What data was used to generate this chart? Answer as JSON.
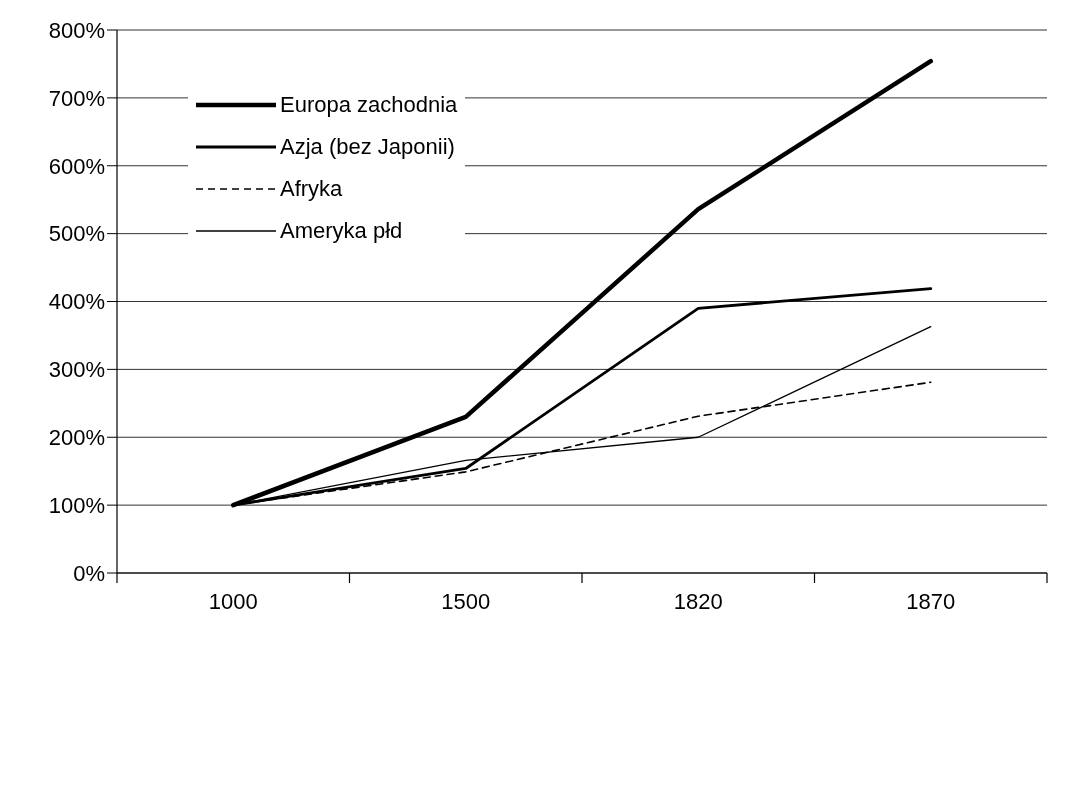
{
  "chart_data": {
    "type": "line",
    "categories": [
      "1000",
      "1500",
      "1820",
      "1870"
    ],
    "series": [
      {
        "name": "Europa zachodnia",
        "color": "#000000",
        "values": [
          100,
          230,
          536,
          754
        ]
      },
      {
        "name": "Azja (bez Japonii)",
        "color": "#000000",
        "values": [
          100,
          154,
          390,
          419
        ]
      },
      {
        "name": "Afryka",
        "color": "#000000",
        "line_style": "dashed",
        "values": [
          100,
          149,
          231,
          281
        ]
      },
      {
        "name": "Ameryka płd",
        "color": "#000000",
        "values": [
          100,
          166,
          200,
          363
        ]
      }
    ],
    "ylim": [
      0,
      800
    ],
    "yticks": [
      {
        "value": 0,
        "label": "0%"
      },
      {
        "value": 100,
        "label": "100%"
      },
      {
        "value": 200,
        "label": "200%"
      },
      {
        "value": 300,
        "label": "300%"
      },
      {
        "value": 400,
        "label": "400%"
      },
      {
        "value": 500,
        "label": "500%"
      },
      {
        "value": 600,
        "label": "600%"
      },
      {
        "value": 700,
        "label": "700%"
      },
      {
        "value": 800,
        "label": "800%"
      }
    ],
    "grid": "y",
    "legend": "top left",
    "marker": "none",
    "line_style": "solid"
  }
}
